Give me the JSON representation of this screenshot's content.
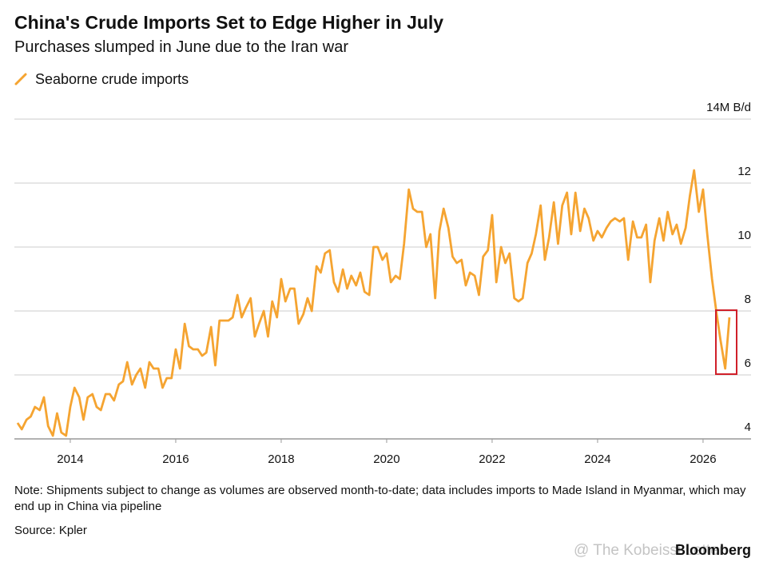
{
  "chart_data": {
    "type": "line",
    "title": "China's Crude Imports Set to Edge Higher in July",
    "subtitle": "Purchases slumped in June due to the Iran war",
    "note": "Note: Shipments subject to change as volumes are observed month-to-date; data includes imports to Made Island in Myanmar, which may end up in China via pipeline",
    "source": "Source: Kpler",
    "brand": "Bloomberg",
    "watermark": "@ The Kobeissi Letter",
    "x": [
      2013.0,
      2013.08,
      2013.17,
      2013.25,
      2013.33,
      2013.42,
      2013.5,
      2013.58,
      2013.67,
      2013.75,
      2013.83,
      2013.92,
      2014.0,
      2014.08,
      2014.17,
      2014.25,
      2014.33,
      2014.42,
      2014.5,
      2014.58,
      2014.67,
      2014.75,
      2014.83,
      2014.92,
      2015.0,
      2015.08,
      2015.17,
      2015.25,
      2015.33,
      2015.42,
      2015.5,
      2015.58,
      2015.67,
      2015.75,
      2015.83,
      2015.92,
      2016.0,
      2016.08,
      2016.17,
      2016.25,
      2016.33,
      2016.42,
      2016.5,
      2016.58,
      2016.67,
      2016.75,
      2016.83,
      2016.92,
      2017.0,
      2017.08,
      2017.17,
      2017.25,
      2017.33,
      2017.42,
      2017.5,
      2017.58,
      2017.67,
      2017.75,
      2017.83,
      2017.92,
      2018.0,
      2018.08,
      2018.17,
      2018.25,
      2018.33,
      2018.42,
      2018.5,
      2018.58,
      2018.67,
      2018.75,
      2018.83,
      2018.92,
      2019.0,
      2019.08,
      2019.17,
      2019.25,
      2019.33,
      2019.42,
      2019.5,
      2019.58,
      2019.67,
      2019.75,
      2019.83,
      2019.92,
      2020.0,
      2020.08,
      2020.17,
      2020.25,
      2020.33,
      2020.42,
      2020.5,
      2020.58,
      2020.67,
      2020.75,
      2020.83,
      2020.92,
      2021.0,
      2021.08,
      2021.17,
      2021.25,
      2021.33,
      2021.42,
      2021.5,
      2021.58,
      2021.67,
      2021.75,
      2021.83,
      2021.92,
      2022.0,
      2022.08,
      2022.17,
      2022.25,
      2022.33,
      2022.42,
      2022.5,
      2022.58,
      2022.67,
      2022.75,
      2022.83,
      2022.92,
      2023.0,
      2023.08,
      2023.17,
      2023.25,
      2023.33,
      2023.42,
      2023.5,
      2023.58,
      2023.67,
      2023.75,
      2023.83,
      2023.92,
      2024.0,
      2024.08,
      2024.17,
      2024.25,
      2024.33,
      2024.42,
      2024.5,
      2024.58,
      2024.67,
      2024.75,
      2024.83,
      2024.92,
      2025.0,
      2025.08,
      2025.17,
      2025.25,
      2025.33,
      2025.42,
      2025.5,
      2025.58,
      2025.67,
      2025.75,
      2025.83,
      2025.92,
      2026.0,
      2026.08,
      2026.17,
      2026.25,
      2026.33,
      2026.42,
      2026.5
    ],
    "series": [
      {
        "name": "Seaborne crude imports",
        "color": "#f5a431",
        "values": [
          4.5,
          4.3,
          4.6,
          4.7,
          5.0,
          4.9,
          5.3,
          4.4,
          4.1,
          4.8,
          4.2,
          4.1,
          5.0,
          5.6,
          5.3,
          4.6,
          5.3,
          5.4,
          5.0,
          4.9,
          5.4,
          5.4,
          5.2,
          5.7,
          5.8,
          6.4,
          5.7,
          6.0,
          6.2,
          5.6,
          6.4,
          6.2,
          6.2,
          5.6,
          5.9,
          5.9,
          6.8,
          6.2,
          7.6,
          6.9,
          6.8,
          6.8,
          6.6,
          6.7,
          7.5,
          6.3,
          7.7,
          7.7,
          7.7,
          7.8,
          8.5,
          7.8,
          8.1,
          8.4,
          7.2,
          7.6,
          8.0,
          7.2,
          8.3,
          7.8,
          9.0,
          8.3,
          8.7,
          8.7,
          7.6,
          7.9,
          8.4,
          8.0,
          9.4,
          9.2,
          9.8,
          9.9,
          8.9,
          8.6,
          9.3,
          8.7,
          9.1,
          8.8,
          9.2,
          8.6,
          8.5,
          10.0,
          10.0,
          9.6,
          9.8,
          8.9,
          9.1,
          9.0,
          10.1,
          11.8,
          11.2,
          11.1,
          11.1,
          10.0,
          10.4,
          8.4,
          10.5,
          11.2,
          10.6,
          9.7,
          9.5,
          9.6,
          8.8,
          9.2,
          9.1,
          8.5,
          9.7,
          9.9,
          11.0,
          8.9,
          10.0,
          9.5,
          9.8,
          8.4,
          8.3,
          8.4,
          9.5,
          9.8,
          10.4,
          11.3,
          9.6,
          10.3,
          11.4,
          10.1,
          11.3,
          11.7,
          10.4,
          11.7,
          10.5,
          11.2,
          10.9,
          10.2,
          10.5,
          10.3,
          10.6,
          10.8,
          10.9,
          10.8,
          10.9,
          9.6,
          10.8,
          10.3,
          10.3,
          10.7,
          8.9,
          10.2,
          10.9,
          10.2,
          11.1,
          10.4,
          10.7,
          10.1,
          10.6,
          11.6,
          12.4,
          11.1,
          11.8,
          10.4,
          9.0,
          8.0,
          7.1,
          6.2,
          7.8
        ]
      }
    ],
    "xlim": [
      2012.94,
      2026.91
    ],
    "xticks": [
      2014,
      2016,
      2018,
      2020,
      2022,
      2024,
      2026
    ],
    "ylim": [
      4,
      14
    ],
    "yticks": [
      4,
      6,
      8,
      10,
      12,
      {
        "value": 14,
        "label": "14M B/d"
      }
    ],
    "grid": true
  }
}
